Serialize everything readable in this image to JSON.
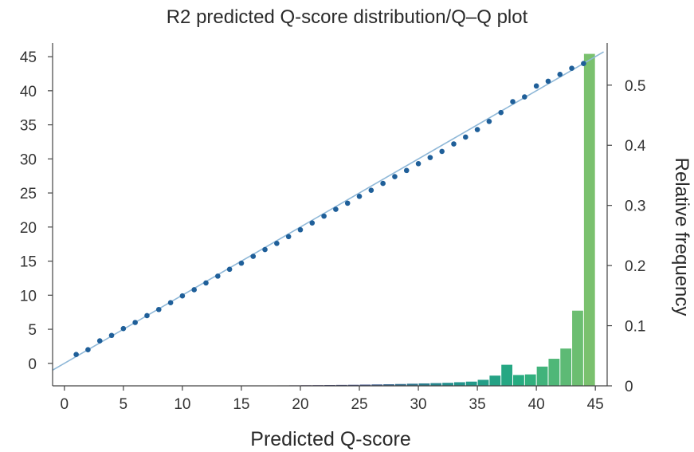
{
  "chart_data": {
    "type": "bar",
    "title": "R2 predicted Q-score distribution/Q–Q plot",
    "xlabel": "Predicted Q-score",
    "ylabel": "",
    "y2label": "Relative frequency",
    "xlim": [
      -1,
      46
    ],
    "ylim": [
      -3.3,
      47
    ],
    "y2lim": [
      0,
      0.57
    ],
    "xticks": [
      0,
      5,
      10,
      15,
      20,
      25,
      30,
      35,
      40,
      45
    ],
    "yticks": [
      0,
      5,
      10,
      15,
      20,
      25,
      30,
      35,
      40,
      45
    ],
    "y2ticks": [
      0,
      0.1,
      0.2,
      0.3,
      0.4,
      0.5
    ],
    "grid": false,
    "series": [
      {
        "type": "bar",
        "axis": "right",
        "x": [
          15,
          16,
          17,
          18,
          19,
          20,
          21,
          22,
          23,
          24,
          25,
          26,
          27,
          28,
          29,
          30,
          31,
          32,
          33,
          34,
          35,
          36,
          37,
          38,
          39,
          40,
          41,
          42,
          43,
          44
        ],
        "values": [
          0.0005,
          0.0005,
          0.0006,
          0.0007,
          0.0008,
          0.001,
          0.0011,
          0.0013,
          0.0015,
          0.0017,
          0.002,
          0.0023,
          0.0026,
          0.003,
          0.0035,
          0.004,
          0.0045,
          0.005,
          0.006,
          0.007,
          0.01,
          0.017,
          0.035,
          0.018,
          0.019,
          0.032,
          0.045,
          0.062,
          0.125,
          0.552
        ]
      },
      {
        "type": "scatter",
        "axis": "left",
        "color": "#1f5f99",
        "x": [
          1,
          2,
          3,
          4,
          5,
          6,
          7,
          8,
          9,
          10,
          11,
          12,
          13,
          14,
          15,
          16,
          17,
          18,
          19,
          20,
          21,
          22,
          23,
          24,
          25,
          26,
          27,
          28,
          29,
          30,
          31,
          32,
          33,
          34,
          35,
          36,
          37,
          38,
          39,
          40,
          41,
          42,
          43,
          44
        ],
        "values": [
          1.3,
          2.0,
          3.3,
          4.1,
          5.1,
          6.0,
          7.0,
          7.9,
          8.9,
          9.9,
          10.8,
          11.8,
          12.8,
          13.8,
          14.7,
          15.7,
          16.7,
          17.6,
          18.6,
          19.6,
          20.6,
          21.6,
          22.6,
          23.5,
          24.5,
          25.4,
          26.4,
          27.4,
          28.3,
          29.3,
          30.2,
          31.1,
          32.2,
          33.2,
          34.3,
          35.5,
          36.8,
          38.4,
          39.1,
          40.7,
          41.4,
          42.4,
          43.3,
          44.0
        ]
      },
      {
        "type": "line",
        "axis": "left",
        "color": "#8fb8d8",
        "x": [
          -1,
          45.7
        ],
        "values": [
          -1,
          45.7
        ]
      }
    ]
  }
}
